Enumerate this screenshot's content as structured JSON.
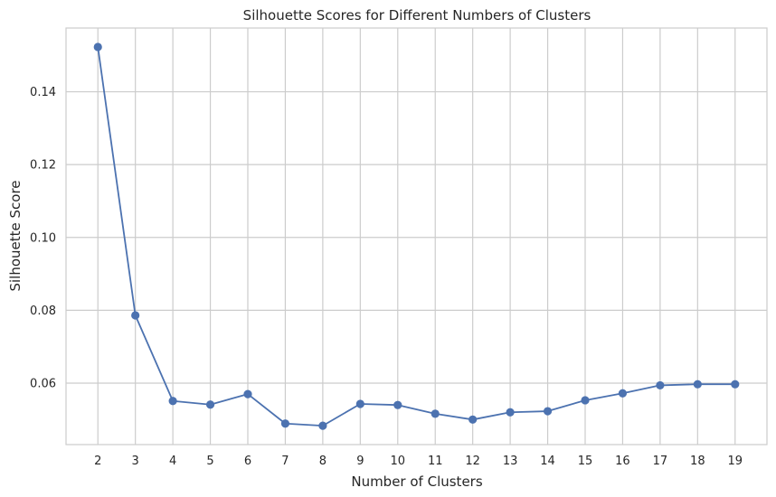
{
  "chart_data": {
    "type": "line",
    "title": "Silhouette Scores for Different Numbers of Clusters",
    "xlabel": "Number of Clusters",
    "ylabel": "Silhouette Score",
    "x": [
      2,
      3,
      4,
      5,
      6,
      7,
      8,
      9,
      10,
      11,
      12,
      13,
      14,
      15,
      16,
      17,
      18,
      19
    ],
    "y": [
      0.1523,
      0.0786,
      0.0551,
      0.0541,
      0.057,
      0.0489,
      0.0483,
      0.0543,
      0.054,
      0.0516,
      0.05,
      0.052,
      0.0523,
      0.0553,
      0.0572,
      0.0594,
      0.0597,
      0.0597
    ],
    "xticks": [
      "2",
      "3",
      "4",
      "5",
      "6",
      "7",
      "8",
      "9",
      "10",
      "11",
      "12",
      "13",
      "14",
      "15",
      "16",
      "17",
      "18",
      "19"
    ],
    "yticks": [
      "0.06",
      "0.08",
      "0.10",
      "0.12",
      "0.14"
    ],
    "ytick_values": [
      0.06,
      0.08,
      0.1,
      0.12,
      0.14
    ],
    "xlim": [
      1.15,
      19.85
    ],
    "ylim": [
      0.04313,
      0.1575
    ],
    "grid": true,
    "marker": "circle",
    "line_color": "#4c72b0"
  }
}
